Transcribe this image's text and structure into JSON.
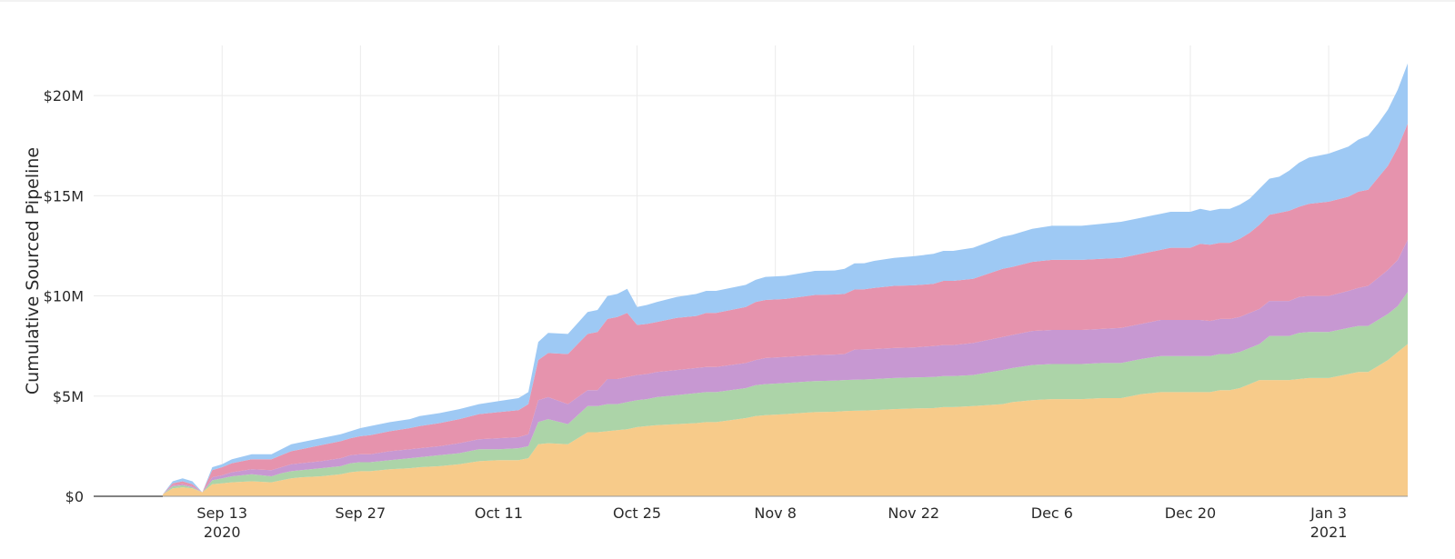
{
  "chart_data": {
    "type": "area",
    "stacked": true,
    "title": "",
    "xlabel": "",
    "ylabel": "Cumulative Sourced Pipeline",
    "grid": true,
    "legend": "none",
    "xlim": [
      "2020-08-31",
      "2021-01-11"
    ],
    "ylim": [
      0,
      22500000
    ],
    "y_ticks": [
      {
        "value": 0,
        "label": "$0"
      },
      {
        "value": 5000000,
        "label": "$5M"
      },
      {
        "value": 10000000,
        "label": "$10M"
      },
      {
        "value": 15000000,
        "label": "$15M"
      },
      {
        "value": 20000000,
        "label": "$20M"
      }
    ],
    "x_ticks": [
      {
        "date": "2020-09-13",
        "label": "Sep 13",
        "sublabel": "2020"
      },
      {
        "date": "2020-09-27",
        "label": "Sep 27",
        "sublabel": ""
      },
      {
        "date": "2020-10-11",
        "label": "Oct 11",
        "sublabel": ""
      },
      {
        "date": "2020-10-25",
        "label": "Oct 25",
        "sublabel": ""
      },
      {
        "date": "2020-11-08",
        "label": "Nov 8",
        "sublabel": ""
      },
      {
        "date": "2020-11-22",
        "label": "Nov 22",
        "sublabel": ""
      },
      {
        "date": "2020-12-06",
        "label": "Dec 6",
        "sublabel": ""
      },
      {
        "date": "2020-12-20",
        "label": "Dec 20",
        "sublabel": ""
      },
      {
        "date": "2021-01-03",
        "label": "Jan 3",
        "sublabel": "2021"
      }
    ],
    "x": [
      "2020-09-07",
      "2020-09-08",
      "2020-09-09",
      "2020-09-10",
      "2020-09-11",
      "2020-09-12",
      "2020-09-13",
      "2020-09-14",
      "2020-09-16",
      "2020-09-18",
      "2020-09-19",
      "2020-09-20",
      "2020-09-21",
      "2020-09-23",
      "2020-09-25",
      "2020-09-26",
      "2020-09-27",
      "2020-09-28",
      "2020-09-30",
      "2020-10-02",
      "2020-10-03",
      "2020-10-05",
      "2020-10-07",
      "2020-10-09",
      "2020-10-11",
      "2020-10-13",
      "2020-10-14",
      "2020-10-15",
      "2020-10-16",
      "2020-10-18",
      "2020-10-20",
      "2020-10-21",
      "2020-10-22",
      "2020-10-23",
      "2020-10-24",
      "2020-10-25",
      "2020-10-26",
      "2020-10-27",
      "2020-10-29",
      "2020-10-31",
      "2020-11-01",
      "2020-11-02",
      "2020-11-05",
      "2020-11-06",
      "2020-11-07",
      "2020-11-09",
      "2020-11-12",
      "2020-11-14",
      "2020-11-15",
      "2020-11-16",
      "2020-11-17",
      "2020-11-18",
      "2020-11-20",
      "2020-11-22",
      "2020-11-24",
      "2020-11-25",
      "2020-11-26",
      "2020-11-28",
      "2020-12-01",
      "2020-12-02",
      "2020-12-04",
      "2020-12-06",
      "2020-12-08",
      "2020-12-09",
      "2020-12-11",
      "2020-12-13",
      "2020-12-15",
      "2020-12-17",
      "2020-12-18",
      "2020-12-20",
      "2020-12-21",
      "2020-12-22",
      "2020-12-23",
      "2020-12-24",
      "2020-12-25",
      "2020-12-26",
      "2020-12-27",
      "2020-12-28",
      "2020-12-29",
      "2020-12-30",
      "2020-12-31",
      "2021-01-01",
      "2021-01-03",
      "2021-01-05",
      "2021-01-06",
      "2021-01-07",
      "2021-01-08",
      "2021-01-09",
      "2021-01-10",
      "2021-01-11"
    ],
    "series": [
      {
        "color": "#f7cb8a",
        "values": [
          0.1,
          0.4,
          0.45,
          0.4,
          0.2,
          0.6,
          0.65,
          0.7,
          0.75,
          0.7,
          0.8,
          0.9,
          0.95,
          1.0,
          1.1,
          1.2,
          1.25,
          1.25,
          1.35,
          1.4,
          1.45,
          1.5,
          1.6,
          1.75,
          1.8,
          1.8,
          1.9,
          2.6,
          2.65,
          2.6,
          3.2,
          3.2,
          3.25,
          3.3,
          3.35,
          3.45,
          3.5,
          3.55,
          3.6,
          3.65,
          3.7,
          3.7,
          3.9,
          4.0,
          4.05,
          4.1,
          4.2,
          4.22,
          4.25,
          4.27,
          4.28,
          4.3,
          4.35,
          4.38,
          4.4,
          4.45,
          4.45,
          4.5,
          4.6,
          4.7,
          4.8,
          4.85,
          4.85,
          4.85,
          4.9,
          4.9,
          5.1,
          5.2,
          5.2,
          5.2,
          5.2,
          5.2,
          5.3,
          5.3,
          5.4,
          5.6,
          5.8,
          5.8,
          5.8,
          5.8,
          5.85,
          5.9,
          5.9,
          6.1,
          6.2,
          6.2,
          6.5,
          6.8,
          7.2,
          7.6
        ]
      },
      {
        "color": "#acd4a8",
        "values": [
          0.0,
          0.1,
          0.1,
          0.05,
          0.0,
          0.2,
          0.25,
          0.3,
          0.35,
          0.3,
          0.35,
          0.35,
          0.35,
          0.4,
          0.4,
          0.45,
          0.45,
          0.45,
          0.45,
          0.5,
          0.5,
          0.55,
          0.55,
          0.6,
          0.55,
          0.6,
          0.6,
          1.1,
          1.2,
          1.0,
          1.3,
          1.3,
          1.35,
          1.3,
          1.35,
          1.35,
          1.35,
          1.4,
          1.45,
          1.5,
          1.5,
          1.5,
          1.5,
          1.55,
          1.55,
          1.55,
          1.55,
          1.55,
          1.55,
          1.55,
          1.55,
          1.55,
          1.55,
          1.55,
          1.55,
          1.55,
          1.55,
          1.55,
          1.7,
          1.7,
          1.75,
          1.75,
          1.75,
          1.75,
          1.75,
          1.75,
          1.75,
          1.8,
          1.8,
          1.8,
          1.8,
          1.8,
          1.8,
          1.8,
          1.8,
          1.8,
          1.8,
          2.2,
          2.2,
          2.2,
          2.3,
          2.3,
          2.3,
          2.3,
          2.3,
          2.3,
          2.3,
          2.3,
          2.3,
          2.6
        ]
      },
      {
        "color": "#c798d2",
        "values": [
          0.0,
          0.05,
          0.05,
          0.05,
          0.0,
          0.15,
          0.15,
          0.2,
          0.25,
          0.3,
          0.3,
          0.35,
          0.35,
          0.35,
          0.4,
          0.4,
          0.4,
          0.4,
          0.45,
          0.45,
          0.45,
          0.45,
          0.5,
          0.5,
          0.55,
          0.55,
          0.6,
          1.1,
          1.1,
          1.0,
          0.8,
          0.8,
          1.25,
          1.25,
          1.25,
          1.25,
          1.25,
          1.25,
          1.25,
          1.25,
          1.25,
          1.25,
          1.25,
          1.25,
          1.3,
          1.3,
          1.3,
          1.3,
          1.3,
          1.5,
          1.5,
          1.5,
          1.5,
          1.5,
          1.55,
          1.55,
          1.55,
          1.6,
          1.65,
          1.65,
          1.7,
          1.7,
          1.7,
          1.7,
          1.7,
          1.75,
          1.75,
          1.8,
          1.8,
          1.8,
          1.8,
          1.75,
          1.75,
          1.75,
          1.75,
          1.75,
          1.75,
          1.75,
          1.75,
          1.75,
          1.8,
          1.8,
          1.8,
          1.85,
          1.9,
          2.0,
          2.1,
          2.2,
          2.3,
          2.6
        ]
      },
      {
        "color": "#e693ad",
        "values": [
          0.0,
          0.1,
          0.15,
          0.1,
          0.0,
          0.35,
          0.4,
          0.45,
          0.5,
          0.55,
          0.6,
          0.65,
          0.7,
          0.8,
          0.85,
          0.85,
          0.9,
          0.95,
          1.0,
          1.05,
          1.1,
          1.15,
          1.2,
          1.25,
          1.3,
          1.35,
          1.5,
          2.0,
          2.2,
          2.5,
          2.8,
          2.9,
          3.0,
          3.1,
          3.2,
          2.5,
          2.5,
          2.5,
          2.6,
          2.6,
          2.7,
          2.7,
          2.8,
          2.9,
          2.9,
          2.9,
          3.0,
          3.0,
          3.0,
          3.0,
          3.0,
          3.05,
          3.1,
          3.1,
          3.1,
          3.2,
          3.2,
          3.2,
          3.4,
          3.4,
          3.45,
          3.5,
          3.5,
          3.5,
          3.5,
          3.5,
          3.5,
          3.5,
          3.6,
          3.6,
          3.8,
          3.8,
          3.8,
          3.8,
          3.9,
          4.0,
          4.2,
          4.3,
          4.4,
          4.5,
          4.5,
          4.6,
          4.7,
          4.7,
          4.8,
          4.8,
          5.0,
          5.2,
          5.6,
          5.8
        ]
      },
      {
        "color": "#9ec9f4",
        "values": [
          0.0,
          0.1,
          0.15,
          0.15,
          0.0,
          0.15,
          0.15,
          0.2,
          0.25,
          0.25,
          0.3,
          0.35,
          0.35,
          0.35,
          0.35,
          0.35,
          0.4,
          0.45,
          0.45,
          0.45,
          0.5,
          0.5,
          0.5,
          0.5,
          0.55,
          0.6,
          0.6,
          0.9,
          1.0,
          1.0,
          1.1,
          1.1,
          1.15,
          1.15,
          1.2,
          0.9,
          0.95,
          1.0,
          1.05,
          1.1,
          1.1,
          1.1,
          1.1,
          1.1,
          1.15,
          1.15,
          1.2,
          1.2,
          1.25,
          1.3,
          1.3,
          1.35,
          1.4,
          1.45,
          1.5,
          1.5,
          1.5,
          1.55,
          1.6,
          1.6,
          1.65,
          1.7,
          1.7,
          1.7,
          1.75,
          1.8,
          1.8,
          1.8,
          1.8,
          1.8,
          1.75,
          1.7,
          1.7,
          1.7,
          1.7,
          1.7,
          1.8,
          1.8,
          1.8,
          2.0,
          2.2,
          2.3,
          2.4,
          2.5,
          2.6,
          2.7,
          2.7,
          2.8,
          2.9,
          3.0
        ]
      }
    ]
  }
}
